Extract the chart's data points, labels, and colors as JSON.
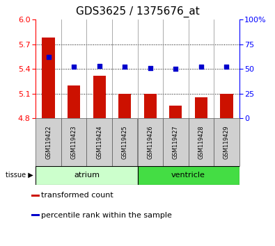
{
  "title": "GDS3625 / 1375676_at",
  "samples": [
    "GSM119422",
    "GSM119423",
    "GSM119424",
    "GSM119425",
    "GSM119426",
    "GSM119427",
    "GSM119428",
    "GSM119429"
  ],
  "transformed_count": [
    5.78,
    5.2,
    5.32,
    5.1,
    5.1,
    4.95,
    5.05,
    5.1
  ],
  "percentile_rank": [
    62,
    52,
    53,
    52,
    51,
    50,
    52,
    52
  ],
  "ylim_left": [
    4.8,
    6.0
  ],
  "ylim_right": [
    0,
    100
  ],
  "yticks_left": [
    4.8,
    5.1,
    5.4,
    5.7,
    6.0
  ],
  "yticks_right": [
    0,
    25,
    50,
    75,
    100
  ],
  "ytick_labels_right": [
    "0",
    "25",
    "50",
    "75",
    "100%"
  ],
  "bar_color": "#cc1100",
  "dot_color": "#0000cc",
  "baseline": 4.8,
  "grid_dotted_at": [
    5.1,
    5.4,
    5.7
  ],
  "atrium_color_light": "#ccffcc",
  "ventricle_color": "#44dd44",
  "atrium_range": [
    0,
    3
  ],
  "ventricle_range": [
    4,
    7
  ],
  "sample_bg_color": "#d0d0d0",
  "title_fontsize": 11,
  "tick_fontsize": 8,
  "label_fontsize": 8,
  "legend_label_1": "transformed count",
  "legend_label_2": "percentile rank within the sample",
  "tissue_text": "tissue",
  "atrium_text": "atrium",
  "ventricle_text": "ventricle"
}
